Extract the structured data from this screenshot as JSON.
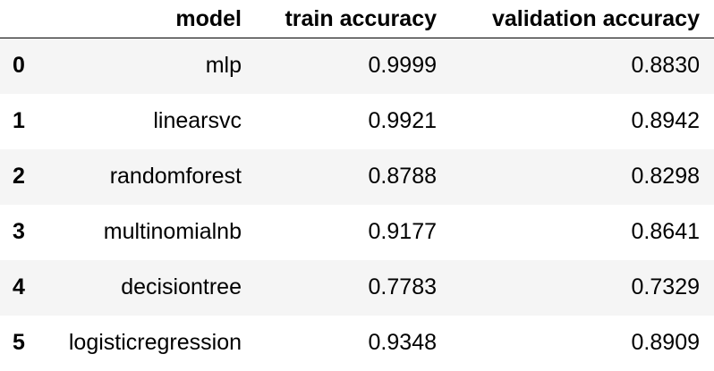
{
  "table": {
    "columns": [
      "model",
      "train accuracy",
      "validation accuracy"
    ],
    "rows": [
      {
        "index": "0",
        "model": "mlp",
        "train_accuracy": "0.9999",
        "validation_accuracy": "0.8830"
      },
      {
        "index": "1",
        "model": "linearsvc",
        "train_accuracy": "0.9921",
        "validation_accuracy": "0.8942"
      },
      {
        "index": "2",
        "model": "randomforest",
        "train_accuracy": "0.8788",
        "validation_accuracy": "0.8298"
      },
      {
        "index": "3",
        "model": "multinomialnb",
        "train_accuracy": "0.9177",
        "validation_accuracy": "0.8641"
      },
      {
        "index": "4",
        "model": "decisiontree",
        "train_accuracy": "0.7783",
        "validation_accuracy": "0.7329"
      },
      {
        "index": "5",
        "model": "logisticregression",
        "train_accuracy": "0.9348",
        "validation_accuracy": "0.8909"
      }
    ]
  }
}
